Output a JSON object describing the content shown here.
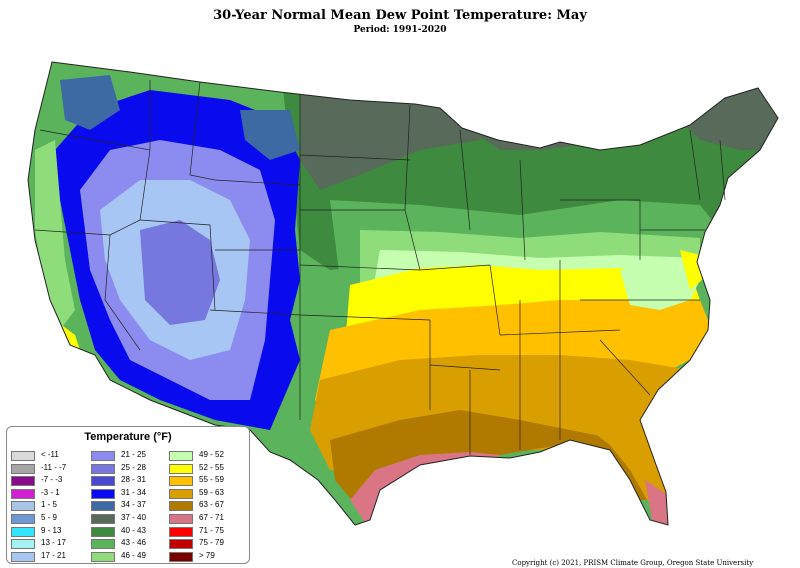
{
  "title": "30-Year Normal Mean Dew Point Temperature: May",
  "subtitle": "Period: 1991-2020",
  "copyright": "Copyright (c) 2021, PRISM Climate Group, Oregon State University",
  "legend": {
    "title": "Temperature (°F)",
    "items": [
      {
        "label": "< -11",
        "color": "#d9d9d9"
      },
      {
        "label": "-11 - -7",
        "color": "#a6a6a6"
      },
      {
        "label": "-7 - -3",
        "color": "#8b0a8b"
      },
      {
        "label": "-3 - 1",
        "color": "#d11fd1"
      },
      {
        "label": "1 - 5",
        "color": "#aac4e6"
      },
      {
        "label": "5 - 9",
        "color": "#6d99d6"
      },
      {
        "label": "9 - 13",
        "color": "#33e6ff"
      },
      {
        "label": "13 - 17",
        "color": "#a6f2f2"
      },
      {
        "label": "17 - 21",
        "color": "#a8c6f4"
      },
      {
        "label": "21 - 25",
        "color": "#8c8cf0"
      },
      {
        "label": "25 - 28",
        "color": "#7777e0"
      },
      {
        "label": "28 - 31",
        "color": "#4848d4"
      },
      {
        "label": "31 - 34",
        "color": "#0a0aee"
      },
      {
        "label": "34 - 37",
        "color": "#3d6aa3"
      },
      {
        "label": "37 - 40",
        "color": "#586b5a"
      },
      {
        "label": "40 - 43",
        "color": "#3e8a3e"
      },
      {
        "label": "43 - 46",
        "color": "#5bb35b"
      },
      {
        "label": "46 - 49",
        "color": "#8fdc7a"
      },
      {
        "label": "49 - 52",
        "color": "#c6ffb0"
      },
      {
        "label": "52 - 55",
        "color": "#ffff00"
      },
      {
        "label": "55 - 59",
        "color": "#ffc000"
      },
      {
        "label": "59 - 63",
        "color": "#d99f00"
      },
      {
        "label": "63 - 67",
        "color": "#b07a00"
      },
      {
        "label": "67 - 71",
        "color": "#d97585"
      },
      {
        "label": "71 - 75",
        "color": "#ff0000"
      },
      {
        "label": "75 - 79",
        "color": "#c00000"
      },
      {
        "label": "> 79",
        "color": "#7a0000"
      }
    ]
  }
}
